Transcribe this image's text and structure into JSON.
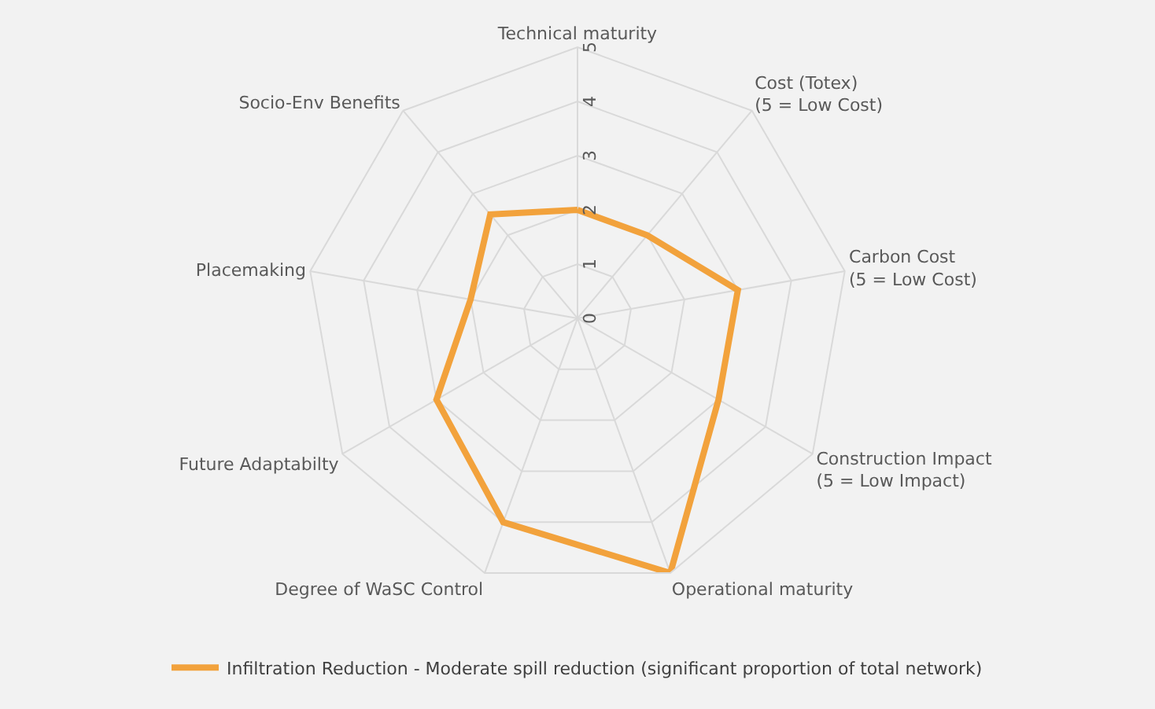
{
  "chart_data": {
    "type": "radar",
    "categories": [
      "Technical maturity",
      "Cost (Totex)\n(5 = Low Cost)",
      "Carbon Cost\n(5 = Low Cost)",
      "Construction Impact\n(5 = Low Impact)",
      "Operational maturity",
      "Degree of WaSC Control",
      "Future Adaptabilty",
      "Placemaking",
      "Socio-Env Benefits"
    ],
    "series": [
      {
        "name": "Infiltration Reduction - Moderate spill reduction (significant proportion of total network)",
        "color": "#f2a23c",
        "values": [
          2,
          2,
          3,
          3,
          5,
          4,
          3,
          2,
          2.5
        ]
      }
    ],
    "ylim": [
      0,
      5
    ],
    "yticks": [
      0,
      1,
      2,
      3,
      4,
      5
    ],
    "grid": true,
    "legend": "bottom",
    "marker": "none"
  }
}
